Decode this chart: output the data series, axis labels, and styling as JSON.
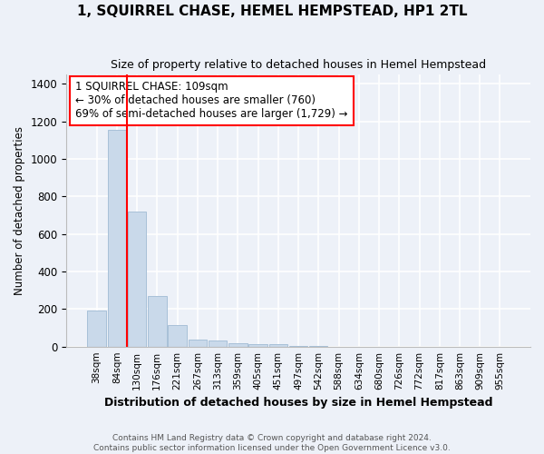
{
  "title": "1, SQUIRREL CHASE, HEMEL HEMPSTEAD, HP1 2TL",
  "subtitle": "Size of property relative to detached houses in Hemel Hempstead",
  "xlabel": "Distribution of detached houses by size in Hemel Hempstead",
  "ylabel": "Number of detached properties",
  "bar_color": "#c9d9ea",
  "bar_edge_color": "#a8c0d8",
  "background_color": "#edf1f8",
  "grid_color": "#ffffff",
  "tick_labels": [
    "38sqm",
    "84sqm",
    "130sqm",
    "176sqm",
    "221sqm",
    "267sqm",
    "313sqm",
    "359sqm",
    "405sqm",
    "451sqm",
    "497sqm",
    "542sqm",
    "588sqm",
    "634sqm",
    "680sqm",
    "726sqm",
    "772sqm",
    "817sqm",
    "863sqm",
    "909sqm",
    "955sqm"
  ],
  "bar_values": [
    190,
    1155,
    720,
    270,
    115,
    35,
    30,
    20,
    12,
    15,
    5,
    3,
    0,
    0,
    0,
    0,
    0,
    0,
    0,
    0,
    0
  ],
  "ylim": [
    0,
    1450
  ],
  "yticks": [
    0,
    200,
    400,
    600,
    800,
    1000,
    1200,
    1400
  ],
  "property_line_x": 1.5,
  "property_size": "109sqm",
  "pct_smaller": 30,
  "num_smaller": 760,
  "pct_larger_semi": 69,
  "num_larger_semi": 1729,
  "footer_line1": "Contains HM Land Registry data © Crown copyright and database right 2024.",
  "footer_line2": "Contains public sector information licensed under the Open Government Licence v3.0."
}
